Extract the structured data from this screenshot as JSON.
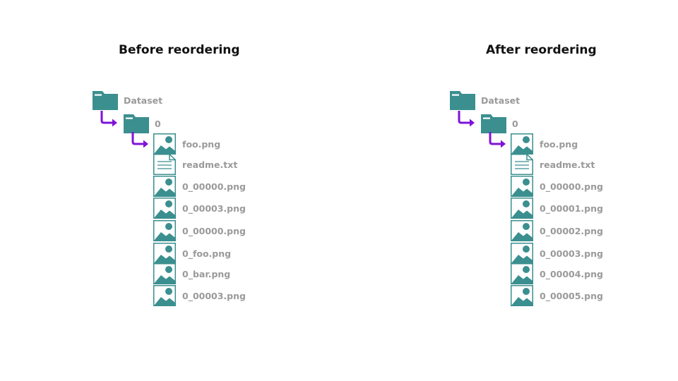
{
  "colors": {
    "teal": "#3b8f8f",
    "arrow": "#7e13d8",
    "label": "#9a9a9a",
    "title": "#111111"
  },
  "before": {
    "title": "Before reordering",
    "root_label": "Dataset",
    "subfolder_label": "0",
    "files": [
      {
        "name": "foo.png",
        "icon": "image-icon"
      },
      {
        "name": "readme.txt",
        "icon": "document-icon"
      },
      {
        "name": "0_00000.png",
        "icon": "image-icon"
      },
      {
        "name": "0_00003.png",
        "icon": "image-icon"
      },
      {
        "name": "0_00000.png",
        "icon": "image-icon"
      },
      {
        "name": "0_foo.png",
        "icon": "image-icon"
      },
      {
        "name": "0_bar.png",
        "icon": "image-icon"
      },
      {
        "name": "0_00003.png",
        "icon": "image-icon"
      }
    ]
  },
  "after": {
    "title": "After reordering",
    "root_label": "Dataset",
    "subfolder_label": "0",
    "files": [
      {
        "name": "foo.png",
        "icon": "image-icon"
      },
      {
        "name": "readme.txt",
        "icon": "document-icon"
      },
      {
        "name": "0_00000.png",
        "icon": "image-icon"
      },
      {
        "name": "0_00001.png",
        "icon": "image-icon"
      },
      {
        "name": "0_00002.png",
        "icon": "image-icon"
      },
      {
        "name": "0_00003.png",
        "icon": "image-icon"
      },
      {
        "name": "0_00004.png",
        "icon": "image-icon"
      },
      {
        "name": "0_00005.png",
        "icon": "image-icon"
      }
    ]
  }
}
